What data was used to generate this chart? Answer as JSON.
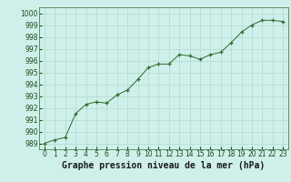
{
  "x": [
    0,
    1,
    2,
    3,
    4,
    5,
    6,
    7,
    8,
    9,
    10,
    11,
    12,
    13,
    14,
    15,
    16,
    17,
    18,
    19,
    20,
    21,
    22,
    23
  ],
  "y": [
    989.0,
    989.3,
    989.5,
    991.5,
    992.3,
    992.5,
    992.4,
    993.1,
    993.5,
    994.4,
    995.4,
    995.7,
    995.7,
    996.5,
    996.4,
    996.1,
    996.5,
    996.7,
    997.5,
    998.4,
    999.0,
    999.4,
    999.4,
    999.3
  ],
  "xlim": [
    -0.5,
    23.5
  ],
  "ylim": [
    988.5,
    1000.5
  ],
  "yticks": [
    989,
    990,
    991,
    992,
    993,
    994,
    995,
    996,
    997,
    998,
    999,
    1000
  ],
  "xticks": [
    0,
    1,
    2,
    3,
    4,
    5,
    6,
    7,
    8,
    9,
    10,
    11,
    12,
    13,
    14,
    15,
    16,
    17,
    18,
    19,
    20,
    21,
    22,
    23
  ],
  "xlabel": "Graphe pression niveau de la mer (hPa)",
  "line_color": "#2d6a2d",
  "marker": "+",
  "bg_color": "#cff0ea",
  "grid_color": "#b0d8d0",
  "tick_label_fontsize": 5.5,
  "xlabel_fontsize": 7.0,
  "title": ""
}
